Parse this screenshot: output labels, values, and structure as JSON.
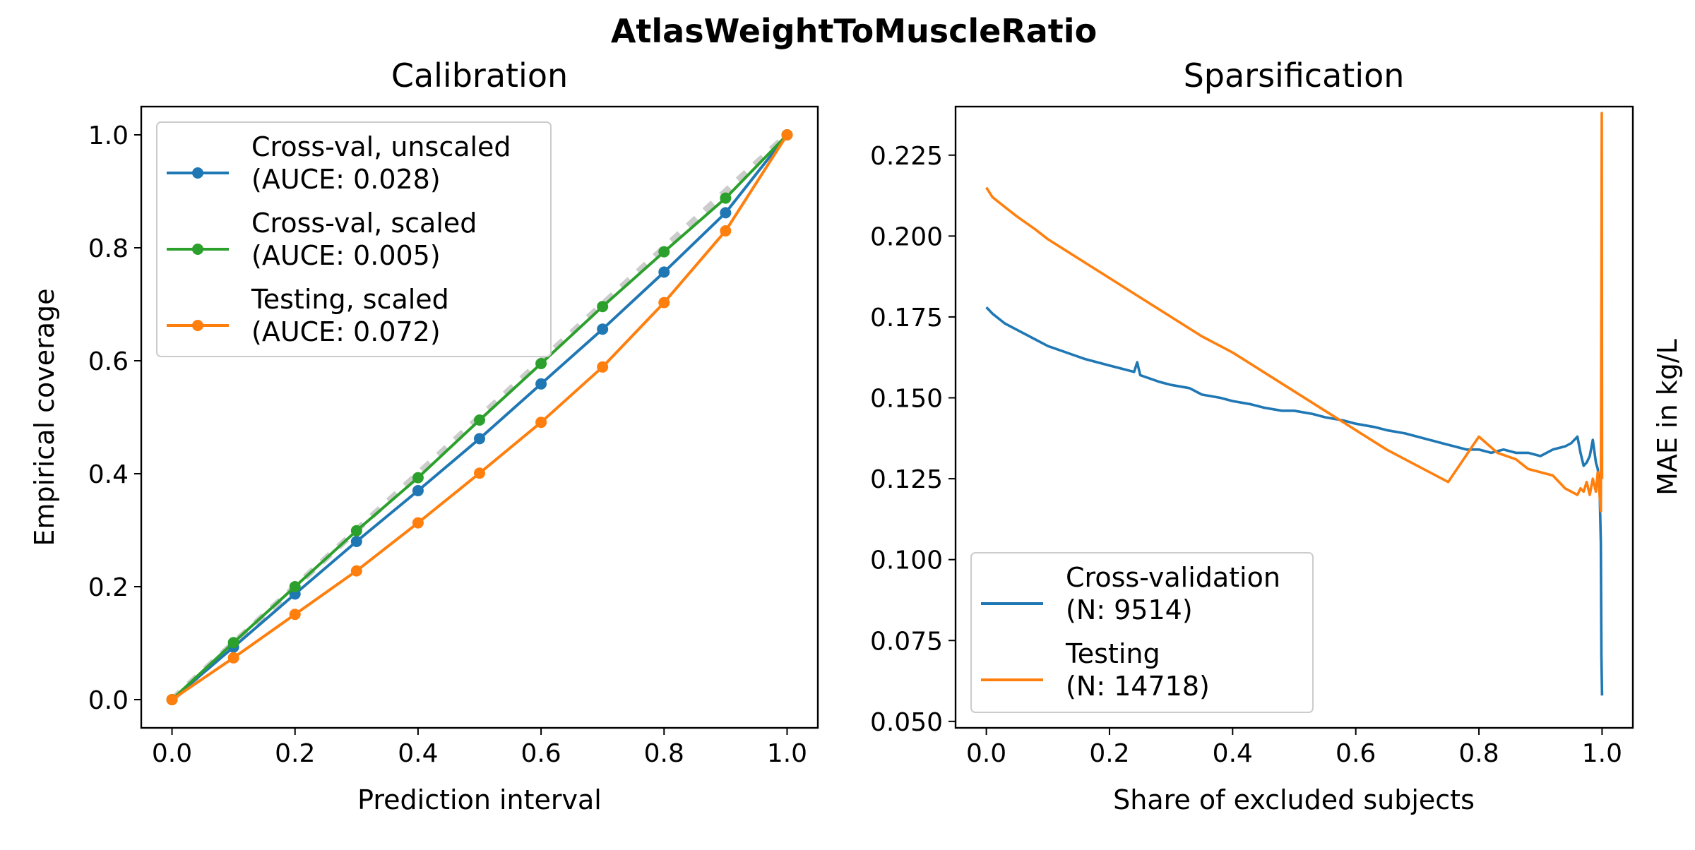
{
  "figure": {
    "title": "AtlasWeightToMuscleRatio"
  },
  "chart_data": [
    {
      "type": "line",
      "title": "Calibration",
      "xlabel": "Prediction interval",
      "ylabel": "Empirical coverage",
      "xlim": [
        -0.05,
        1.05
      ],
      "ylim": [
        -0.05,
        1.05
      ],
      "xticks": [
        0.0,
        0.2,
        0.4,
        0.6,
        0.8,
        1.0
      ],
      "yticks": [
        0.0,
        0.2,
        0.4,
        0.6,
        0.8,
        1.0
      ],
      "xtick_labels": [
        "0.0",
        "0.2",
        "0.4",
        "0.6",
        "0.8",
        "1.0"
      ],
      "ytick_labels": [
        "0.0",
        "0.2",
        "0.4",
        "0.6",
        "0.8",
        "1.0"
      ],
      "grid": false,
      "legend_position": "top-left",
      "reference_line": {
        "x": [
          0,
          1
        ],
        "y": [
          0,
          1
        ],
        "color": "#cccccc",
        "style": "dashed"
      },
      "x": [
        0.0,
        0.1,
        0.2,
        0.3,
        0.4,
        0.5,
        0.6,
        0.7,
        0.8,
        0.9,
        1.0
      ],
      "series": [
        {
          "name": "Cross-val, unscaled",
          "legend": [
            "Cross-val, unscaled",
            "(AUCE: 0.028)"
          ],
          "color": "#1f77b4",
          "values": [
            0.0,
            0.093,
            0.187,
            0.28,
            0.37,
            0.462,
            0.559,
            0.656,
            0.757,
            0.862,
            1.0
          ]
        },
        {
          "name": "Cross-val, scaled",
          "legend": [
            "Cross-val, scaled",
            "(AUCE: 0.005)"
          ],
          "color": "#2ca02c",
          "values": [
            0.0,
            0.101,
            0.2,
            0.299,
            0.393,
            0.495,
            0.595,
            0.696,
            0.793,
            0.888,
            1.0
          ]
        },
        {
          "name": "Testing, scaled",
          "legend": [
            "Testing, scaled",
            "(AUCE: 0.072)"
          ],
          "color": "#ff7f0e",
          "values": [
            0.0,
            0.074,
            0.151,
            0.228,
            0.313,
            0.401,
            0.491,
            0.589,
            0.703,
            0.83,
            1.0
          ]
        }
      ]
    },
    {
      "type": "line",
      "title": "Sparsification",
      "xlabel": "Share of excluded subjects",
      "ylabel": "MAE in kg/L",
      "xlim": [
        -0.05,
        1.05
      ],
      "ylim": [
        0.048,
        0.24
      ],
      "xticks": [
        0.0,
        0.2,
        0.4,
        0.6,
        0.8,
        1.0
      ],
      "yticks": [
        0.05,
        0.075,
        0.1,
        0.125,
        0.15,
        0.175,
        0.2,
        0.225
      ],
      "xtick_labels": [
        "0.0",
        "0.2",
        "0.4",
        "0.6",
        "0.8",
        "1.0"
      ],
      "ytick_labels": [
        "0.050",
        "0.075",
        "0.100",
        "0.125",
        "0.150",
        "0.175",
        "0.200",
        "0.225"
      ],
      "grid": false,
      "legend_position": "bottom-left",
      "series": [
        {
          "name": "Cross-validation",
          "legend": [
            "Cross-validation",
            "(N: 9514)"
          ],
          "color": "#1f77b4",
          "x": [
            0.0,
            0.01,
            0.03,
            0.05,
            0.08,
            0.1,
            0.13,
            0.16,
            0.2,
            0.24,
            0.245,
            0.25,
            0.28,
            0.3,
            0.33,
            0.35,
            0.38,
            0.4,
            0.43,
            0.45,
            0.48,
            0.5,
            0.53,
            0.55,
            0.58,
            0.6,
            0.63,
            0.65,
            0.68,
            0.7,
            0.72,
            0.74,
            0.76,
            0.78,
            0.8,
            0.82,
            0.84,
            0.86,
            0.88,
            0.9,
            0.92,
            0.94,
            0.95,
            0.96,
            0.965,
            0.97,
            0.975,
            0.98,
            0.985,
            0.99,
            0.993,
            0.996,
            0.998,
            0.999,
            1.0
          ],
          "values": [
            0.178,
            0.176,
            0.173,
            0.171,
            0.168,
            0.166,
            0.164,
            0.162,
            0.16,
            0.158,
            0.161,
            0.157,
            0.155,
            0.154,
            0.153,
            0.151,
            0.15,
            0.149,
            0.148,
            0.147,
            0.146,
            0.146,
            0.145,
            0.144,
            0.143,
            0.142,
            0.141,
            0.14,
            0.139,
            0.138,
            0.137,
            0.136,
            0.135,
            0.134,
            0.134,
            0.133,
            0.134,
            0.133,
            0.133,
            0.132,
            0.134,
            0.135,
            0.136,
            0.138,
            0.133,
            0.129,
            0.13,
            0.132,
            0.137,
            0.13,
            0.128,
            0.122,
            0.105,
            0.07,
            0.058
          ]
        },
        {
          "name": "Testing",
          "legend": [
            "Testing",
            "(N: 14718)"
          ],
          "color": "#ff7f0e",
          "x": [
            0.0,
            0.01,
            0.03,
            0.05,
            0.08,
            0.1,
            0.15,
            0.2,
            0.25,
            0.3,
            0.35,
            0.4,
            0.45,
            0.5,
            0.55,
            0.6,
            0.65,
            0.7,
            0.75,
            0.8,
            0.83,
            0.86,
            0.88,
            0.9,
            0.92,
            0.94,
            0.95,
            0.96,
            0.965,
            0.97,
            0.975,
            0.98,
            0.985,
            0.99,
            0.993,
            0.996,
            0.998,
            0.999,
            0.9995,
            1.0
          ],
          "values": [
            0.215,
            0.212,
            0.209,
            0.206,
            0.202,
            0.199,
            0.193,
            0.187,
            0.181,
            0.175,
            0.169,
            0.164,
            0.158,
            0.152,
            0.146,
            0.14,
            0.134,
            0.129,
            0.124,
            0.138,
            0.133,
            0.131,
            0.128,
            0.127,
            0.126,
            0.122,
            0.121,
            0.12,
            0.122,
            0.121,
            0.124,
            0.12,
            0.125,
            0.121,
            0.127,
            0.12,
            0.115,
            0.185,
            0.238,
            0.125
          ]
        }
      ]
    }
  ]
}
